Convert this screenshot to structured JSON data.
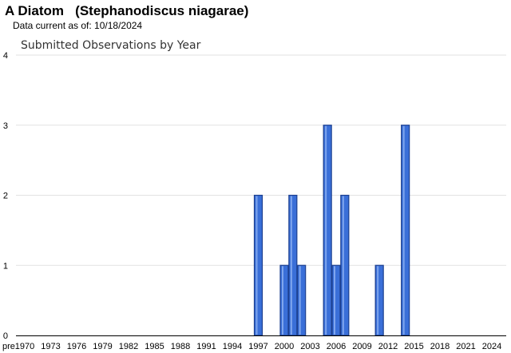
{
  "header": {
    "title": "A Diatom   (Stephanodiscus niagarae)",
    "data_current": "Data current as of: 10/18/2024"
  },
  "chart_data": {
    "type": "bar",
    "title": "Submitted Observations by Year",
    "xlabel": "",
    "ylabel": "",
    "ylim": [
      0,
      4
    ],
    "yticks": [
      0,
      1,
      2,
      3,
      4
    ],
    "grid": true,
    "x_tick_labels": [
      "pre",
      "1970",
      "1973",
      "1976",
      "1979",
      "1982",
      "1985",
      "1988",
      "1991",
      "1994",
      "1997",
      "2000",
      "2003",
      "2006",
      "2009",
      "2012",
      "2015",
      "2018",
      "2021",
      "2024"
    ],
    "categories": [
      "1997",
      "2000",
      "2001",
      "2002",
      "2005",
      "2006",
      "2007",
      "2011",
      "2014"
    ],
    "values": [
      2,
      1,
      2,
      1,
      3,
      1,
      2,
      1,
      3
    ],
    "bar_color": "#3a6fd8",
    "bar_edge_color": "#1c3f8f"
  }
}
